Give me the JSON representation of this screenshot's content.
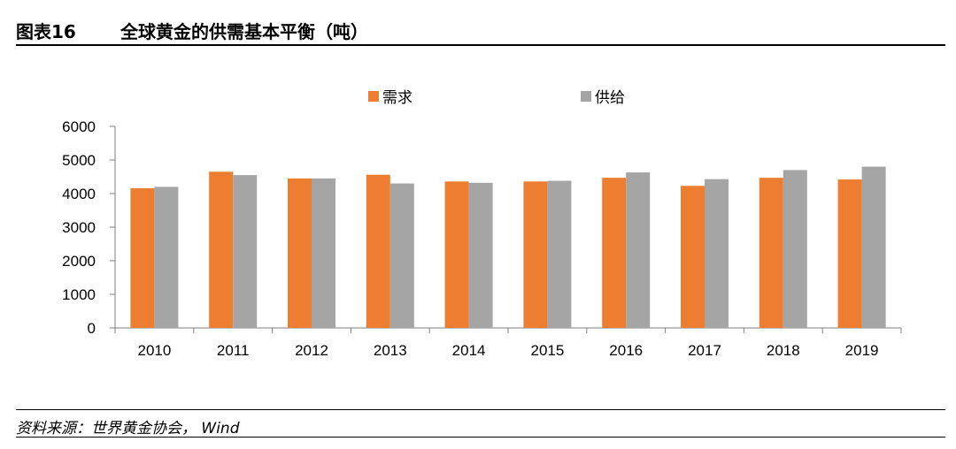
{
  "header": {
    "figure_number": "图表16",
    "title": "全球黄金的供需基本平衡（吨）"
  },
  "legend": [
    {
      "label": "需求",
      "color": "#ED7D31"
    },
    {
      "label": "供给",
      "color": "#A5A5A5"
    }
  ],
  "chart_data": {
    "type": "bar",
    "categories": [
      "2010",
      "2011",
      "2012",
      "2013",
      "2014",
      "2015",
      "2016",
      "2017",
      "2018",
      "2019"
    ],
    "series": [
      {
        "name": "需求",
        "color": "#ED7D31",
        "values": [
          4160,
          4650,
          4450,
          4560,
          4360,
          4360,
          4470,
          4230,
          4470,
          4420
        ]
      },
      {
        "name": "供给",
        "color": "#A5A5A5",
        "values": [
          4200,
          4550,
          4450,
          4300,
          4320,
          4380,
          4630,
          4430,
          4700,
          4800
        ]
      }
    ],
    "y_ticks": [
      "0",
      "1000",
      "2000",
      "3000",
      "4000",
      "5000",
      "6000"
    ],
    "ylim": [
      0,
      6000
    ],
    "grid": false,
    "legend_position": "top"
  },
  "source": "资料来源：世界黄金协会，  Wind"
}
